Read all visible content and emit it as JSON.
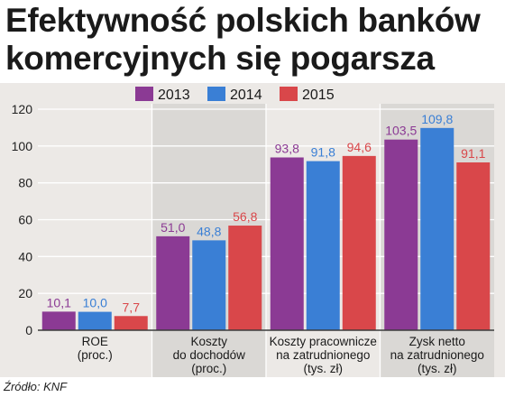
{
  "header": {
    "title_line1": "Efektywność polskich banków",
    "title_line2": "komercyjnych się pogarsza"
  },
  "source": "Źródło: KNF",
  "colors": {
    "2013": "#8b3a94",
    "2014": "#3a7fd5",
    "2015": "#d9474a",
    "panel": "#ece9e6",
    "shaded_group": "#dad8d5"
  },
  "chart_data": {
    "type": "bar",
    "categories": [
      [
        "ROE",
        "(proc.)"
      ],
      [
        "Koszty",
        "do dochodów",
        "(proc.)"
      ],
      [
        "Koszty pracownicze",
        "na zatrudnionego",
        "(tys. zł)"
      ],
      [
        "Zysk netto",
        "na zatrudnionego",
        "(tys. zł)"
      ]
    ],
    "series": [
      {
        "name": "2013",
        "values": [
          10.1,
          51.0,
          93.8,
          103.5
        ],
        "labels": [
          "10,1",
          "51,0",
          "93,8",
          "103,5"
        ]
      },
      {
        "name": "2014",
        "values": [
          10.0,
          48.8,
          91.8,
          109.8
        ],
        "labels": [
          "10,0",
          "48,8",
          "91,8",
          "109,8"
        ]
      },
      {
        "name": "2015",
        "values": [
          7.7,
          56.8,
          94.6,
          91.1
        ],
        "labels": [
          "7,7",
          "56,8",
          "94,6",
          "91,1"
        ]
      }
    ],
    "title": "Efektywność polskich banków komercyjnych się pogarsza",
    "xlabel": "",
    "ylabel": "",
    "ylim": [
      0,
      120
    ],
    "yticks": [
      "0",
      "20",
      "40",
      "60",
      "80",
      "100",
      "120"
    ],
    "grid": true,
    "legend_position": "top-center"
  }
}
